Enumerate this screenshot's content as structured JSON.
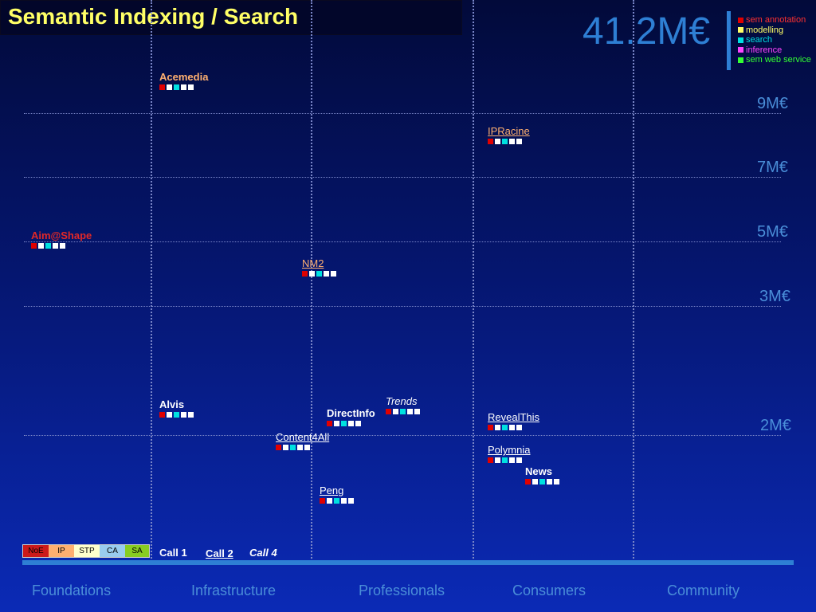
{
  "title": "Semantic Indexing / Search",
  "total_budget": "41.2M€",
  "budget_levels": [
    "9M€",
    "7M€",
    "5M€",
    "3M€",
    "2M€"
  ],
  "legend": [
    {
      "label": "sem annotation",
      "color": "#ff3030"
    },
    {
      "label": "modelling",
      "color": "#ffff66"
    },
    {
      "label": "search",
      "color": "#00e0e0"
    },
    {
      "label": "inference",
      "color": "#ff44ff"
    },
    {
      "label": "sem web service",
      "color": "#33ff33"
    }
  ],
  "projects": {
    "acemedia": "Acemedia",
    "ipracine": "IPRacine",
    "aimshape": "Aim@Shape",
    "nm2": "NM2",
    "alvis": "Alvis",
    "directinfo": "DirectInfo",
    "trends": "Trends",
    "content4all": "Content4All",
    "revealthis": "RevealThis",
    "polymnia": "Polymnia",
    "news": "News",
    "peng": "Peng"
  },
  "project_types": [
    {
      "label": "NoE",
      "color": "#cc1a1a"
    },
    {
      "label": "IP",
      "color": "#ffb070"
    },
    {
      "label": "STP",
      "color": "#ffffcc"
    },
    {
      "label": "CA",
      "color": "#99ccee"
    },
    {
      "label": "SA",
      "color": "#88cc22"
    }
  ],
  "calls": [
    "Call 1",
    "Call 2",
    "Call 4"
  ],
  "categories": [
    "Foundations",
    "Infrastructure",
    "Professionals",
    "Consumers",
    "Community"
  ]
}
